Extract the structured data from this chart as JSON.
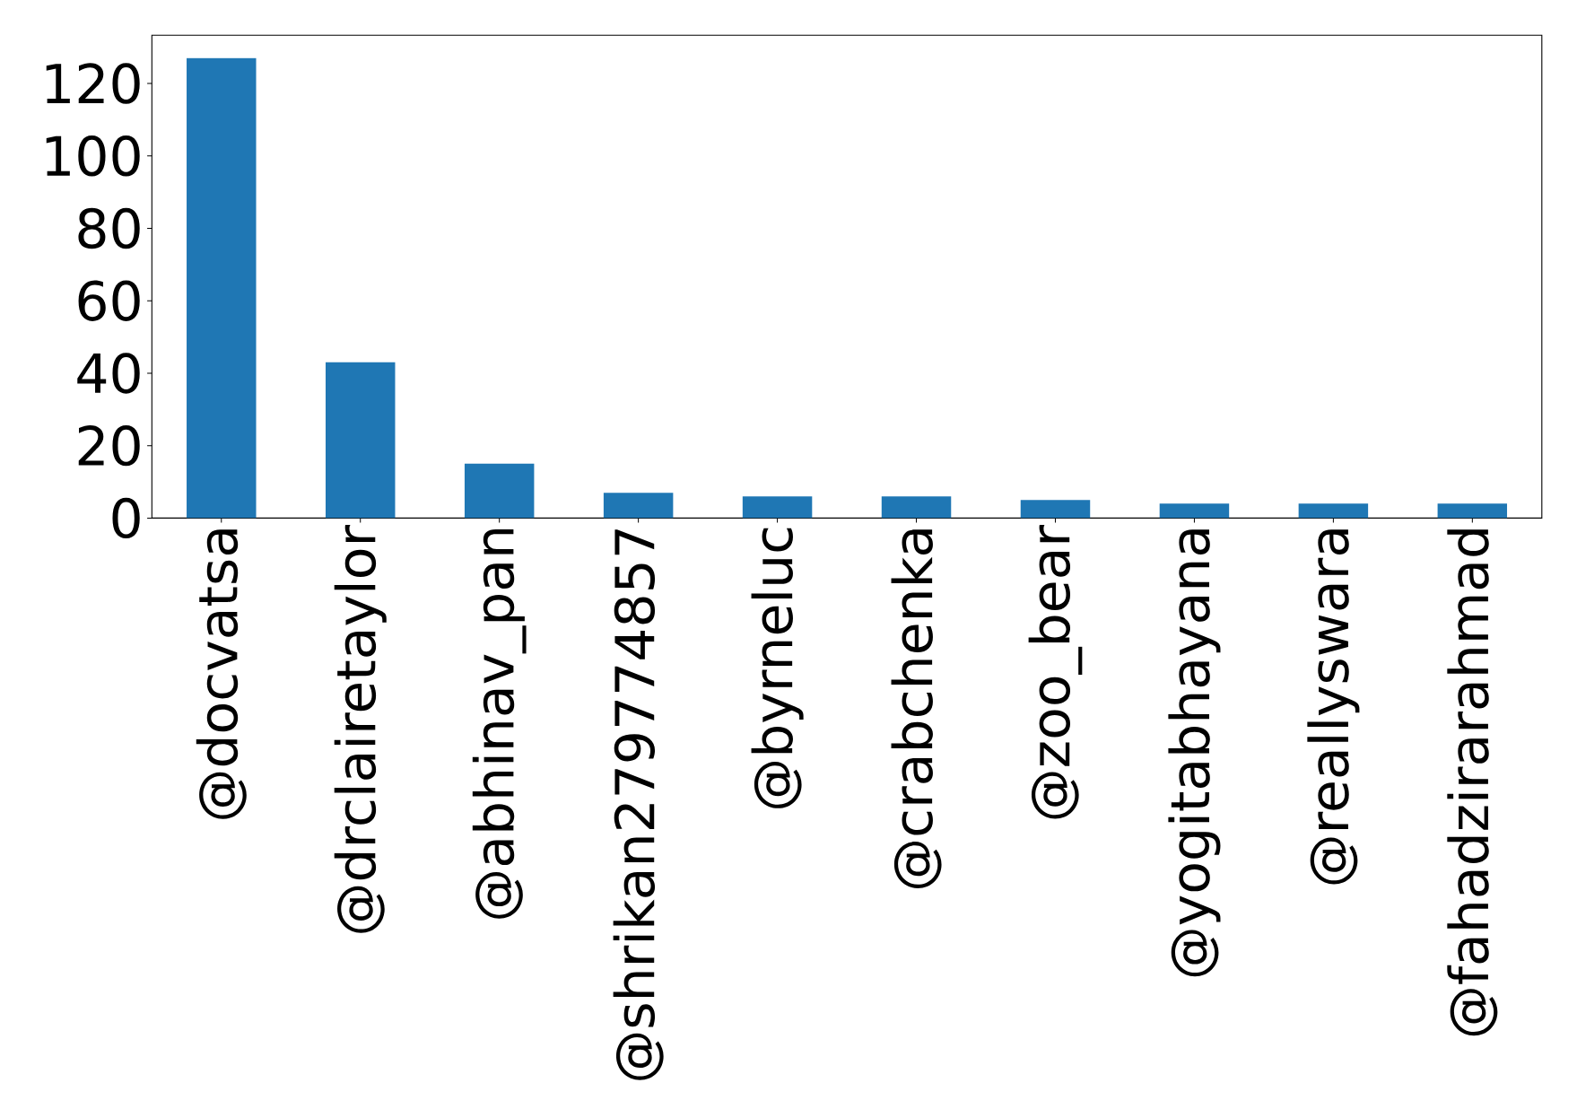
{
  "chart_data": {
    "type": "bar",
    "categories": [
      "@docvatsa",
      "@drclairetaylor",
      "@abhinav_pan",
      "@shrikan279774857",
      "@byrneluc",
      "@crabchenka",
      "@zoo_bear",
      "@yogitabhayana",
      "@reallyswara",
      "@fahadzirarahmad"
    ],
    "values": [
      127,
      43,
      15,
      7,
      6,
      6,
      5,
      4,
      4,
      4
    ],
    "color": "#1f77b4",
    "ylim": [
      0,
      133.35
    ],
    "yticks": [
      0,
      20,
      40,
      60,
      80,
      100,
      120
    ]
  }
}
